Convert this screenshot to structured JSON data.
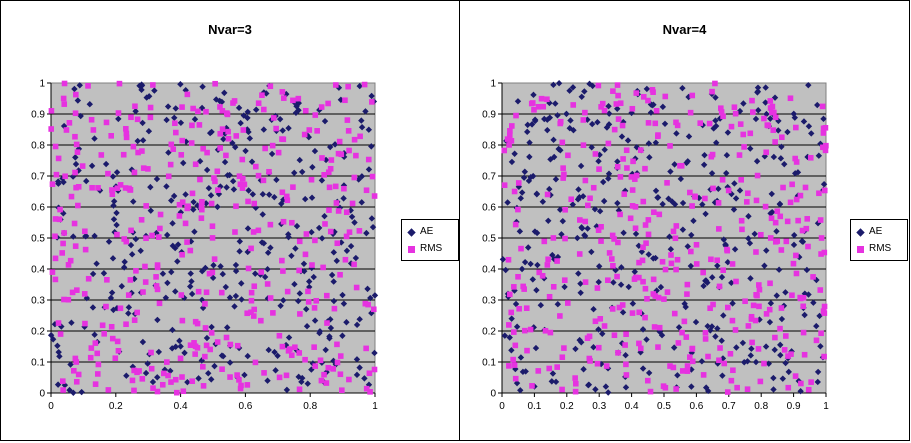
{
  "chart_data": [
    {
      "type": "scatter",
      "title": "Nvar=3",
      "xlim": [
        0,
        1
      ],
      "ylim": [
        0,
        1
      ],
      "x_ticks": [
        "0",
        "0.2",
        "0.4",
        "0.6",
        "0.8",
        "1"
      ],
      "y_ticks": [
        "0",
        "0.1",
        "0.2",
        "0.3",
        "0.4",
        "0.5",
        "0.6",
        "0.7",
        "0.8",
        "0.9",
        "1"
      ],
      "grid": "horizontal",
      "legend_position": "right",
      "series": [
        {
          "name": "AE",
          "marker": "diamond",
          "color": "#1b1b6b",
          "n_points": 400,
          "distribution": "uniform",
          "seed": 11
        },
        {
          "name": "RMS",
          "marker": "square",
          "color": "#e632e0",
          "n_points": 400,
          "distribution": "uniform",
          "seed": 23
        }
      ]
    },
    {
      "type": "scatter",
      "title": "Nvar=4",
      "xlim": [
        0,
        1
      ],
      "ylim": [
        0,
        1
      ],
      "x_ticks": [
        "0",
        "0.1",
        "0.2",
        "0.3",
        "0.4",
        "0.5",
        "0.6",
        "0.7",
        "0.8",
        "0.9",
        "1"
      ],
      "y_ticks": [
        "0",
        "0.1",
        "0.2",
        "0.3",
        "0.4",
        "0.5",
        "0.6",
        "0.7",
        "0.8",
        "0.9",
        "1"
      ],
      "grid": "horizontal",
      "legend_position": "right",
      "series": [
        {
          "name": "AE",
          "marker": "diamond",
          "color": "#1b1b6b",
          "n_points": 400,
          "distribution": "uniform",
          "seed": 37
        },
        {
          "name": "RMS",
          "marker": "square",
          "color": "#e632e0",
          "n_points": 400,
          "distribution": "uniform",
          "seed": 51
        }
      ]
    }
  ],
  "colors": {
    "plot_area": "#c0c0c0",
    "gridline": "#000000"
  }
}
